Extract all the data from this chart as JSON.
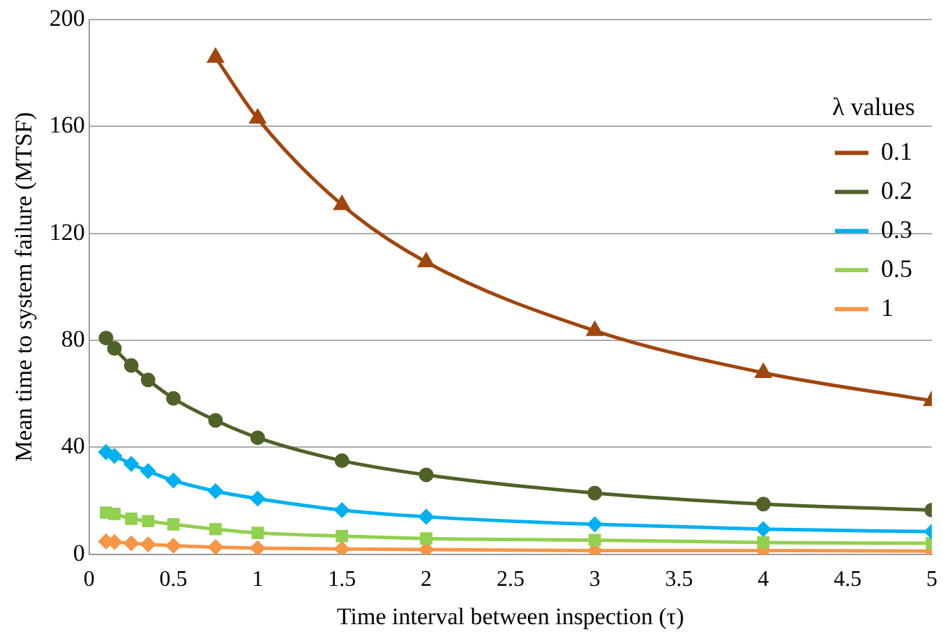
{
  "chart_data": {
    "type": "line",
    "xlabel": "Time interval between inspection (τ)",
    "ylabel": "Mean time to system failure (MTSF)",
    "legend_title": "λ values",
    "legend": "top right",
    "grid": "y",
    "line_style": "solid",
    "x": [
      0.1,
      0.15,
      0.25,
      0.35,
      0.5,
      0.75,
      1,
      1.5,
      2,
      3,
      4,
      5
    ],
    "xlim": [
      0,
      5
    ],
    "xticks": [
      0,
      0.5,
      1,
      1.5,
      2,
      2.5,
      3,
      3.5,
      4,
      4.5,
      5
    ],
    "ylim": [
      0,
      200
    ],
    "yticks": [
      0,
      40,
      80,
      120,
      160,
      200
    ],
    "series": [
      {
        "name": "0.1",
        "color": "#a0460e",
        "marker": "triangle",
        "values": [
          null,
          null,
          null,
          null,
          null,
          185.8,
          163,
          130.7,
          109.3,
          83.6,
          67.9,
          57.4
        ]
      },
      {
        "name": "0.2",
        "color": "#4f6228",
        "marker": "circle",
        "values": [
          80.9,
          77,
          70.6,
          65.2,
          58.3,
          50.1,
          43.6,
          35,
          29.7,
          22.9,
          18.8,
          16.5
        ]
      },
      {
        "name": "0.3",
        "color": "#00b0f0",
        "marker": "diamond",
        "values": [
          38.2,
          36.8,
          33.8,
          31.1,
          27.6,
          23.6,
          20.8,
          16.5,
          14,
          11.2,
          9.4,
          8.5
        ]
      },
      {
        "name": "0.5",
        "color": "#92d050",
        "marker": "square",
        "values": [
          15.6,
          15.1,
          13.3,
          12.4,
          11.2,
          9.4,
          8,
          6.8,
          5.9,
          5.3,
          4.4,
          4.1
        ]
      },
      {
        "name": "1",
        "color": "#f79646",
        "marker": "diamond",
        "values": [
          4.8,
          4.6,
          4.1,
          3.7,
          3.2,
          2.7,
          2.3,
          2,
          1.8,
          1.4,
          1.4,
          1.2
        ]
      }
    ]
  }
}
